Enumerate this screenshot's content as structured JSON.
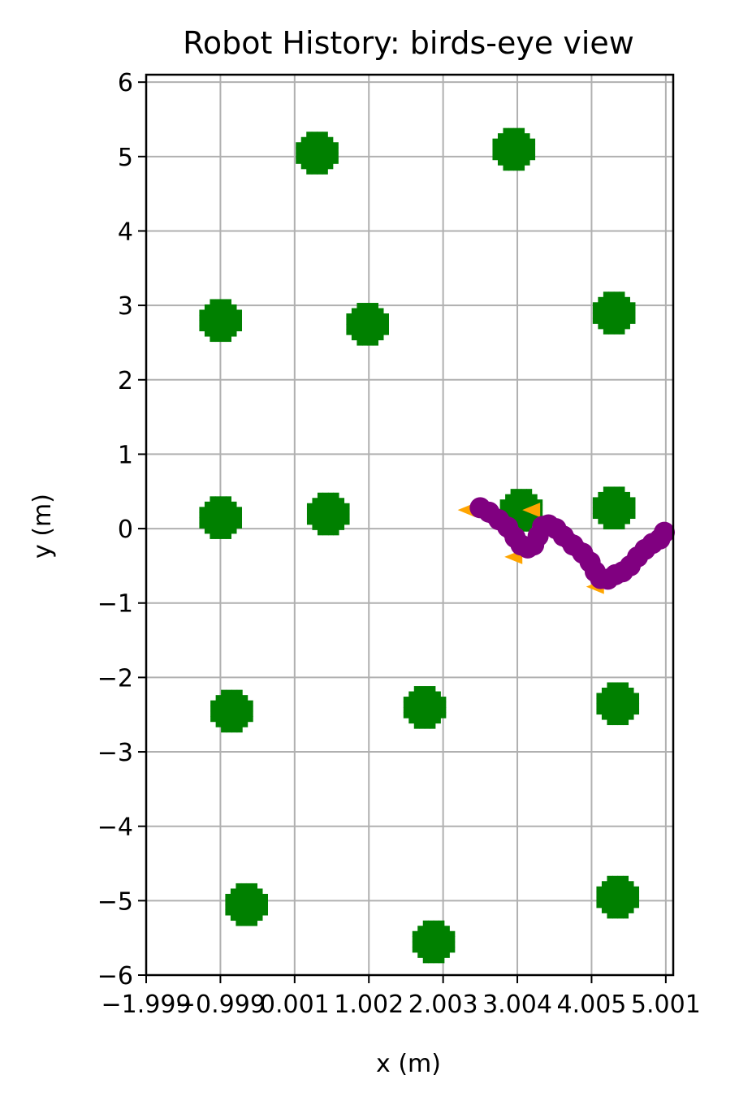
{
  "chart_data": {
    "type": "scatter",
    "title": "Robot History: birds-eye view",
    "xlabel": "x (m)",
    "ylabel": "y (m)",
    "grid": true,
    "x_ticks": [
      {
        "value": -2,
        "label": "−1.999"
      },
      {
        "value": -1,
        "label": "−0.999"
      },
      {
        "value": 0,
        "label": "0.001"
      },
      {
        "value": 1,
        "label": "1.002"
      },
      {
        "value": 2,
        "label": "2.003"
      },
      {
        "value": 3,
        "label": "3.004"
      },
      {
        "value": 4,
        "label": "4.005"
      },
      {
        "value": 5,
        "label": "5.001"
      }
    ],
    "y_ticks": [
      {
        "value": 6,
        "label": "6"
      },
      {
        "value": 5,
        "label": "5"
      },
      {
        "value": 4,
        "label": "4"
      },
      {
        "value": 3,
        "label": "3"
      },
      {
        "value": 2,
        "label": "2"
      },
      {
        "value": 1,
        "label": "1"
      },
      {
        "value": 0,
        "label": "0"
      },
      {
        "value": -1,
        "label": "−1"
      },
      {
        "value": -2,
        "label": "−2"
      },
      {
        "value": -3,
        "label": "−3"
      },
      {
        "value": -4,
        "label": "−4"
      },
      {
        "value": -5,
        "label": "−5"
      },
      {
        "value": -6,
        "label": "−6"
      }
    ],
    "xlim": [
      -2.0,
      5.1
    ],
    "ylim": [
      -6.0,
      6.1
    ],
    "obstacles": {
      "color": "#008000",
      "radius": 0.28,
      "points": [
        {
          "x": 0.3,
          "y": 5.05
        },
        {
          "x": 2.95,
          "y": 5.1
        },
        {
          "x": -1.0,
          "y": 2.8
        },
        {
          "x": 0.98,
          "y": 2.75
        },
        {
          "x": 4.3,
          "y": 2.9
        },
        {
          "x": -1.0,
          "y": 0.15
        },
        {
          "x": 0.45,
          "y": 0.2
        },
        {
          "x": 3.05,
          "y": 0.25
        },
        {
          "x": 4.3,
          "y": 0.28
        },
        {
          "x": -0.85,
          "y": -2.45
        },
        {
          "x": 1.75,
          "y": -2.4
        },
        {
          "x": 4.35,
          "y": -2.35
        },
        {
          "x": -0.65,
          "y": -5.05
        },
        {
          "x": 1.87,
          "y": -5.55
        },
        {
          "x": 4.35,
          "y": -4.95
        }
      ]
    },
    "trajectory": {
      "color": "#800080",
      "points": [
        {
          "x": 2.5,
          "y": 0.28
        },
        {
          "x": 2.62,
          "y": 0.22
        },
        {
          "x": 2.75,
          "y": 0.12
        },
        {
          "x": 2.87,
          "y": 0.02
        },
        {
          "x": 2.97,
          "y": -0.12
        },
        {
          "x": 3.05,
          "y": -0.22
        },
        {
          "x": 3.14,
          "y": -0.26
        },
        {
          "x": 3.22,
          "y": -0.22
        },
        {
          "x": 3.28,
          "y": -0.1
        },
        {
          "x": 3.34,
          "y": 0.03
        },
        {
          "x": 3.42,
          "y": 0.05
        },
        {
          "x": 3.52,
          "y": 0.0
        },
        {
          "x": 3.62,
          "y": -0.1
        },
        {
          "x": 3.75,
          "y": -0.22
        },
        {
          "x": 3.88,
          "y": -0.33
        },
        {
          "x": 3.98,
          "y": -0.45
        },
        {
          "x": 4.05,
          "y": -0.58
        },
        {
          "x": 4.12,
          "y": -0.67
        },
        {
          "x": 4.22,
          "y": -0.68
        },
        {
          "x": 4.32,
          "y": -0.62
        },
        {
          "x": 4.42,
          "y": -0.58
        },
        {
          "x": 4.52,
          "y": -0.5
        },
        {
          "x": 4.62,
          "y": -0.38
        },
        {
          "x": 4.72,
          "y": -0.28
        },
        {
          "x": 4.82,
          "y": -0.2
        },
        {
          "x": 4.92,
          "y": -0.14
        },
        {
          "x": 4.98,
          "y": -0.05
        }
      ]
    },
    "heading_markers": {
      "color": "#FFA500",
      "points": [
        {
          "x": 2.35,
          "y": 0.25
        },
        {
          "x": 3.22,
          "y": 0.25
        },
        {
          "x": 2.98,
          "y": -0.38
        },
        {
          "x": 4.08,
          "y": -0.78
        }
      ]
    }
  }
}
